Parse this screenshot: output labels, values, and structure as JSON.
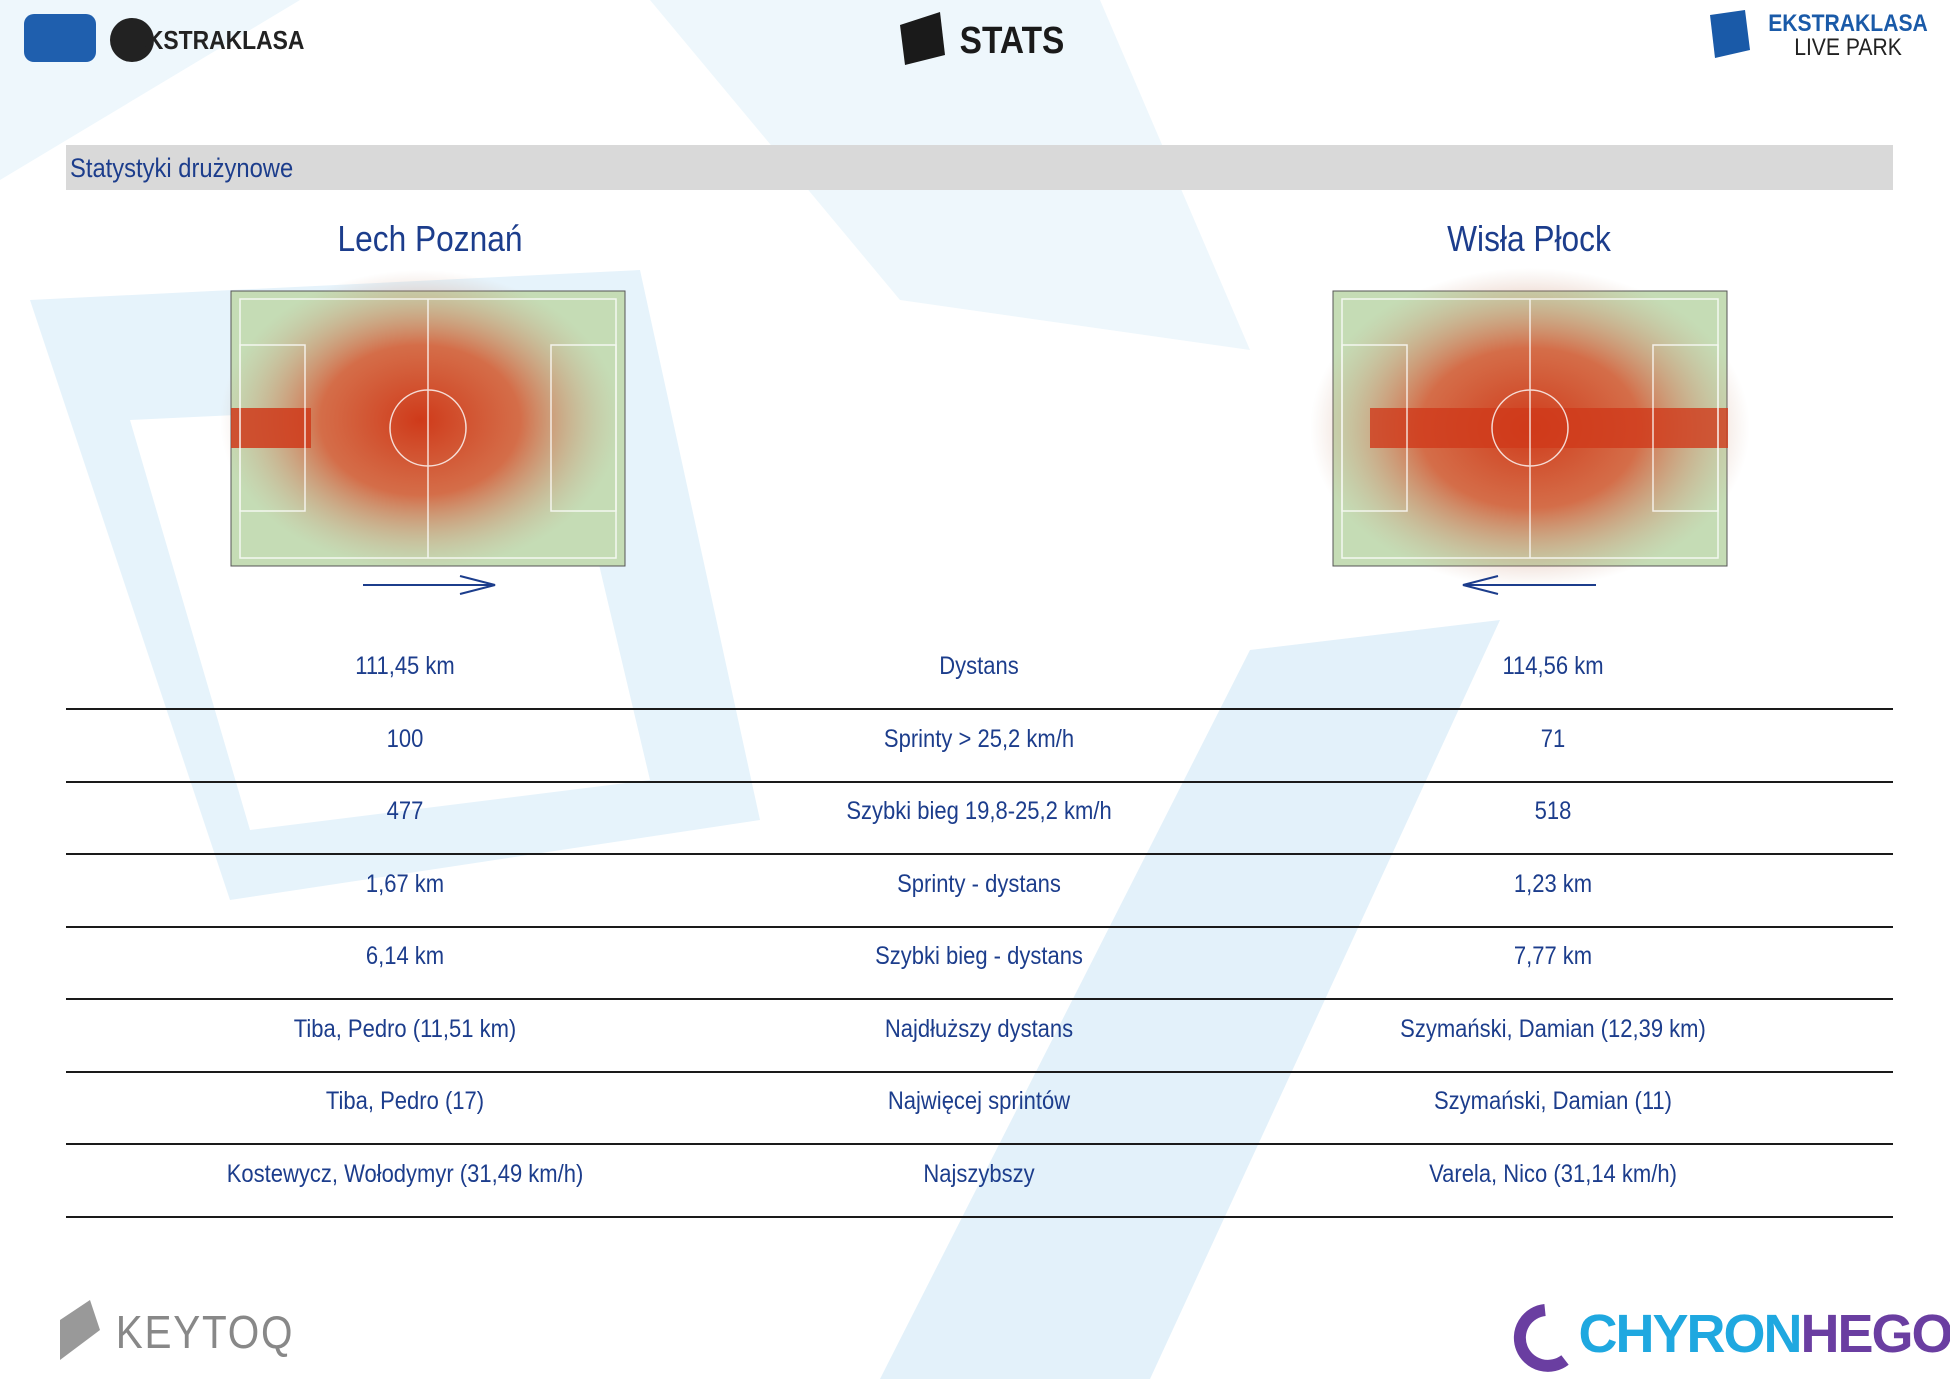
{
  "header": {
    "left_logo": "EKSTRAKLASA",
    "center_logo": "STATS",
    "right_logo_top": "EKSTRAKLASA",
    "right_logo_bottom": "LIVE PARK"
  },
  "section": {
    "title": "Statystyki drużynowe"
  },
  "teams": [
    "Lech Poznań",
    "Wisła Płock"
  ],
  "table": {
    "rows": [
      [
        "111,45 km",
        "Dystans",
        "114,56 km"
      ],
      [
        "100",
        "Sprinty > 25,2 km/h",
        "71"
      ],
      [
        "477",
        "Szybki bieg 19,8-25,2 km/h",
        "518"
      ],
      [
        "1,67 km",
        "Sprinty - dystans",
        "1,23 km"
      ],
      [
        "6,14 km",
        "Szybki bieg - dystans",
        "7,77 km"
      ],
      [
        "Tiba, Pedro (11,51 km)",
        "Najdłuższy dystans",
        "Szymański, Damian (12,39 km)"
      ],
      [
        "Tiba, Pedro (17)",
        "Najwięcej sprintów",
        "Szymański, Damian (11)"
      ],
      [
        "Kostewycz, Wołodymyr (31,49 km/h)",
        "Najszybszy",
        "Varela, Nico (31,14 km/h)"
      ]
    ]
  },
  "footer": {
    "left": "KEYTOQ",
    "right_a": "CHYRON",
    "right_b": "HEGO"
  }
}
